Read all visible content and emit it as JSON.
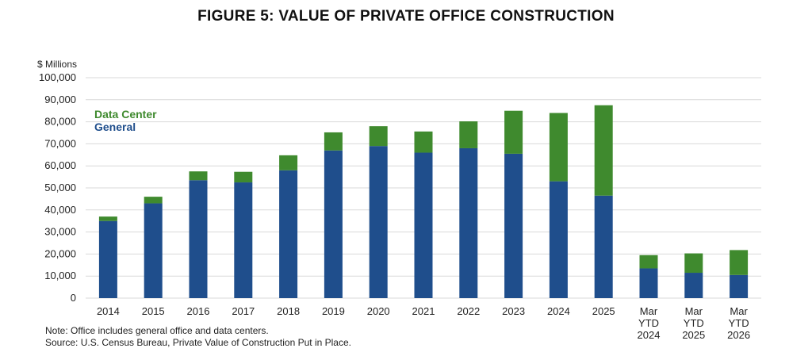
{
  "chart_data": {
    "type": "bar",
    "stacked": true,
    "title": "FIGURE 5: VALUE OF PRIVATE OFFICE CONSTRUCTION",
    "ylabel": "$ Millions",
    "ylim": [
      0,
      100000
    ],
    "yticks": [
      "0",
      "10,000",
      "20,000",
      "30,000",
      "40,000",
      "50,000",
      "60,000",
      "70,000",
      "80,000",
      "90,000",
      "100,000"
    ],
    "grid": true,
    "legend_position": "top-left",
    "categories": [
      [
        "2014"
      ],
      [
        "2015"
      ],
      [
        "2016"
      ],
      [
        "2017"
      ],
      [
        "2018"
      ],
      [
        "2019"
      ],
      [
        "2020"
      ],
      [
        "2021"
      ],
      [
        "2022"
      ],
      [
        "2023"
      ],
      [
        "2024"
      ],
      [
        "2025"
      ],
      [
        "Mar",
        "YTD",
        "2024"
      ],
      [
        "Mar",
        "YTD",
        "2025"
      ],
      [
        "Mar",
        "YTD",
        "2026"
      ]
    ],
    "series": [
      {
        "name": "General",
        "color": "#1f4e8c",
        "values": [
          35000,
          43000,
          53500,
          52500,
          58000,
          67000,
          69000,
          66000,
          68000,
          65500,
          53000,
          46500,
          13500,
          11500,
          10500
        ]
      },
      {
        "name": "Data Center",
        "color": "#3f8a2e",
        "values": [
          2000,
          3000,
          4000,
          4800,
          6800,
          8200,
          9000,
          9600,
          12200,
          19500,
          31000,
          41000,
          6000,
          8800,
          11300
        ]
      }
    ],
    "legend": [
      {
        "label": "Data Center",
        "color": "#3f8a2e"
      },
      {
        "label": "General",
        "color": "#1f4e8c"
      }
    ]
  },
  "notes": [
    "Note: Office includes general office and data centers.",
    "Source: U.S. Census Bureau, Private Value of Construction Put in Place."
  ]
}
